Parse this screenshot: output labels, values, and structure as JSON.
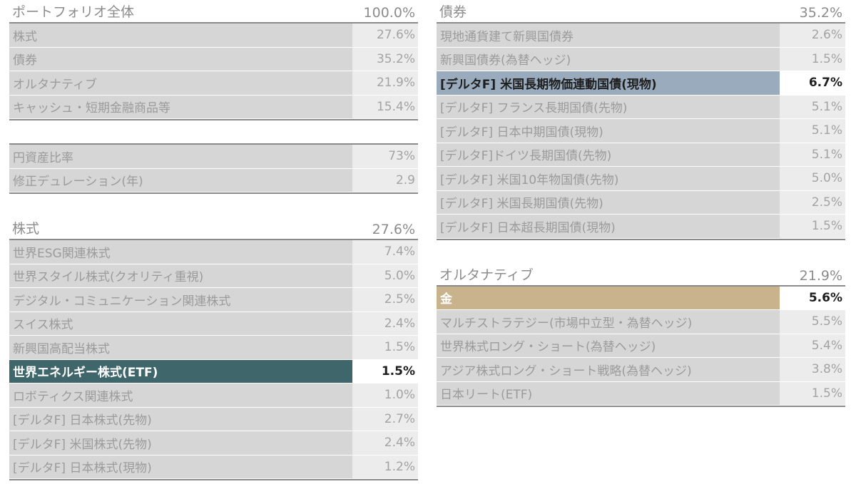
{
  "portfolio": {
    "title": "ポートフォリオ全体",
    "total": "100.0%",
    "rows": [
      {
        "label": "株式",
        "value": "27.6%"
      },
      {
        "label": "債券",
        "value": "35.2%"
      },
      {
        "label": "オルタナティブ",
        "value": "21.9%"
      },
      {
        "label": "キャッシュ・短期金融商品等",
        "value": "15.4%"
      }
    ]
  },
  "metrics": {
    "rows": [
      {
        "label": "円資産比率",
        "value": "73%"
      },
      {
        "label": "修正デュレーション(年)",
        "value": "2.9"
      }
    ]
  },
  "equity": {
    "title": "株式",
    "total": "27.6%",
    "rows": [
      {
        "label": "世界ESG関連株式",
        "value": "7.4%"
      },
      {
        "label": "世界スタイル株式(クオリティ重視)",
        "value": "5.0%"
      },
      {
        "label": "デジタル・コミュニケーション関連株式",
        "value": "2.5%"
      },
      {
        "label": "スイス株式",
        "value": "2.4%"
      },
      {
        "label": "新興国高配当株式",
        "value": "1.5%"
      },
      {
        "label": "世界エネルギー株式(ETF)",
        "value": "1.5%"
      },
      {
        "label": "ロボティクス関連株式",
        "value": "1.0%"
      },
      {
        "label": "[デルタF] 日本株式(先物)",
        "value": "2.7%"
      },
      {
        "label": "[デルタF] 米国株式(先物)",
        "value": "2.4%"
      },
      {
        "label": "[デルタF] 日本株式(現物)",
        "value": "1.2%"
      }
    ]
  },
  "bonds": {
    "title": "債券",
    "total": "35.2%",
    "rows": [
      {
        "label": "現地通貨建て新興国債券",
        "value": "2.6%"
      },
      {
        "label": "新興国債券(為替ヘッジ)",
        "value": "1.5%"
      },
      {
        "label": "[デルタF] 米国長期物価連動国債(現物)",
        "value": "6.7%"
      },
      {
        "label": "[デルタF] フランス長期国債(先物)",
        "value": "5.1%"
      },
      {
        "label": "[デルタF] 日本中期国債(現物)",
        "value": "5.1%"
      },
      {
        "label": "[デルタF]ドイツ長期国債(先物)",
        "value": "5.1%"
      },
      {
        "label": "[デルタF] 米国10年物国債(先物)",
        "value": "5.0%"
      },
      {
        "label": "[デルタF] 米国長期国債(先物)",
        "value": "2.5%"
      },
      {
        "label": "[デルタF] 日本超長期国債(現物)",
        "value": "1.5%"
      }
    ]
  },
  "alternative": {
    "title": "オルタナティブ",
    "total": "21.9%",
    "rows": [
      {
        "label": "金",
        "value": "5.6%"
      },
      {
        "label": "マルチストラテジー(市場中立型・為替ヘッジ)",
        "value": "5.5%"
      },
      {
        "label": "世界株式ロング・ショート(為替ヘッジ)",
        "value": "5.4%"
      },
      {
        "label": "アジア株式ロング・ショート戦略(為替ヘッジ)",
        "value": "3.8%"
      },
      {
        "label": "日本リート(ETF)",
        "value": "1.5%"
      }
    ]
  },
  "colors": {
    "highlight_teal": "#3f666b",
    "highlight_blue": "#9aabbe",
    "highlight_gold": "#c9b38c"
  }
}
